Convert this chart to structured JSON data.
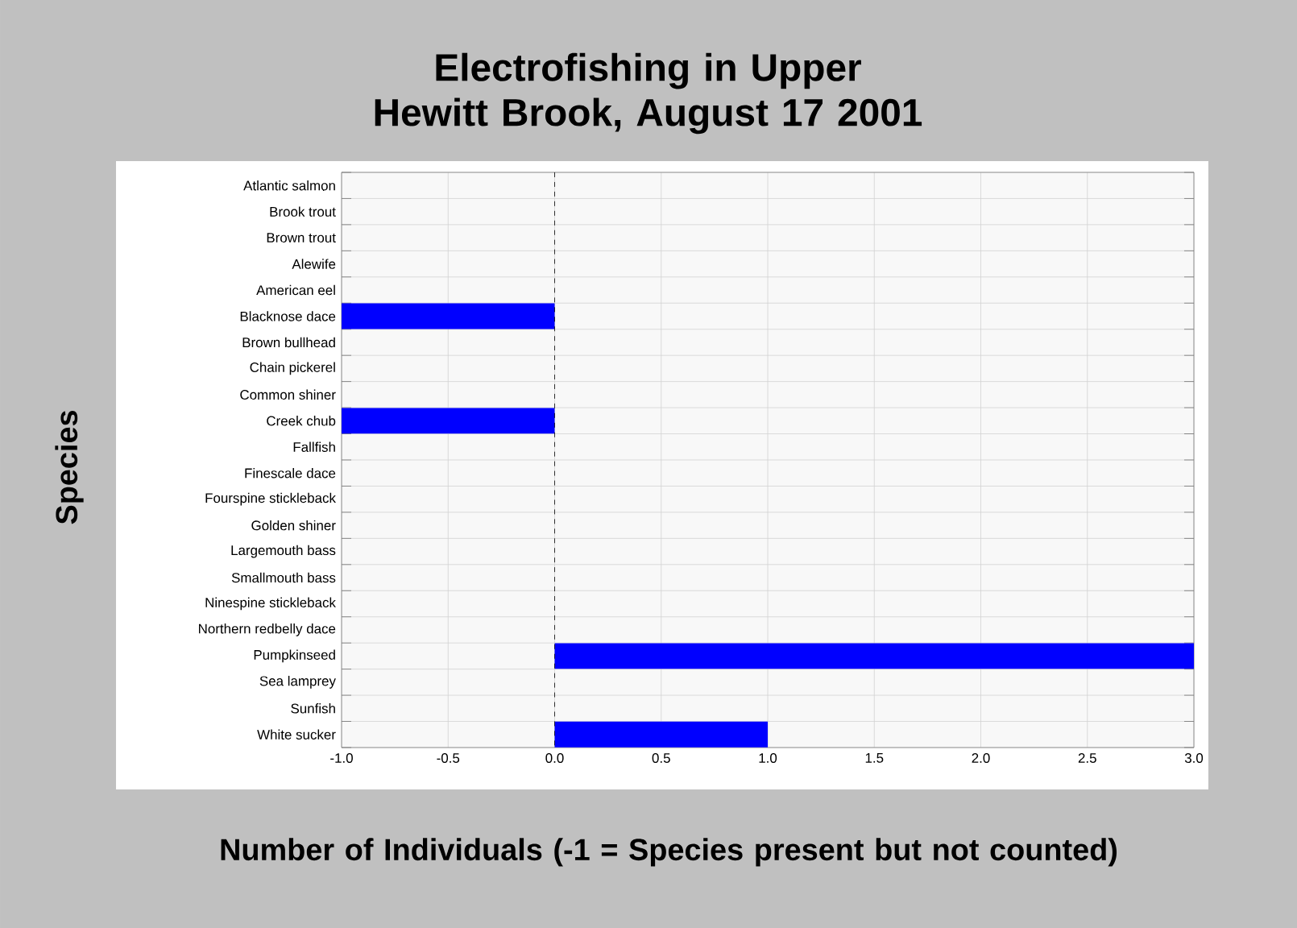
{
  "chart_data": {
    "type": "bar",
    "orientation": "horizontal",
    "title": "Electrofishing in Upper Hewitt Brook, August 17 2001",
    "xlabel": "Number of Individuals (-1 = Species present but not counted)",
    "ylabel": "Species",
    "categories": [
      "Atlantic salmon",
      "Brook trout",
      "Brown trout",
      "Alewife",
      "American eel",
      "Blacknose dace",
      "Brown bullhead",
      "Chain pickerel",
      "Common shiner",
      "Creek chub",
      "Fallfish",
      "Finescale dace",
      "Fourspine stickleback",
      "Golden shiner",
      "Largemouth bass",
      "Smallmouth bass",
      "Ninespine stickleback",
      "Northern redbelly dace",
      "Pumpkinseed",
      "Sea lamprey",
      "Sunfish",
      "White sucker"
    ],
    "values": [
      0,
      0,
      0,
      0,
      0,
      -1,
      0,
      0,
      0,
      -1,
      0,
      0,
      0,
      0,
      0,
      0,
      0,
      0,
      3,
      0,
      0,
      1
    ],
    "color": "#0000ff",
    "xlim": [
      -1,
      3
    ],
    "xticks": [
      {
        "value": -1,
        "label": "-1.0"
      },
      {
        "value": -0.5,
        "label": "-0.5"
      },
      {
        "value": 0,
        "label": "0.0"
      },
      {
        "value": 0.5,
        "label": "0.5"
      },
      {
        "value": 1,
        "label": "1.0"
      },
      {
        "value": 1.5,
        "label": "1.5"
      },
      {
        "value": 2,
        "label": "2.0"
      },
      {
        "value": 2.5,
        "label": "2.5"
      },
      {
        "value": 3,
        "label": "3.0"
      }
    ],
    "grid": true,
    "ref_lines": [
      {
        "axis": "x",
        "value": 0,
        "line_style": "dashed",
        "color": "#000000"
      }
    ]
  }
}
